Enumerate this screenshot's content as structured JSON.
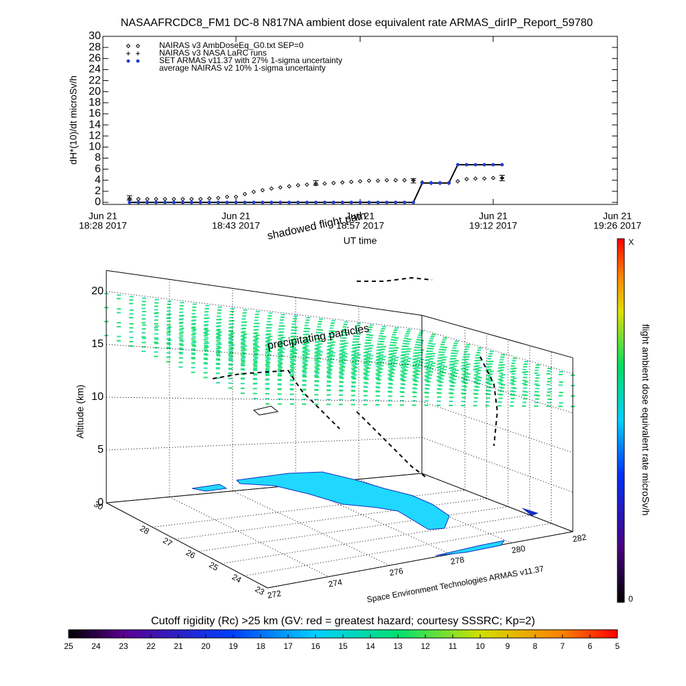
{
  "chart_data": [
    {
      "type": "line",
      "title": "NASAAFRCDC8_FM1 DC-8   N817NA ambient dose equivalent rate ARMAS_dirIP_Report_59780",
      "y_label": "dH*(10)/dt microSv/h",
      "x_label": "UT time",
      "xlim": [
        "18:28",
        "19:26"
      ],
      "xticks": [
        {
          "value": "18:28",
          "label": [
            "Jun 21",
            "18:28 2017"
          ]
        },
        {
          "value": "18:43",
          "label": [
            "Jun 21",
            "18:43 2017"
          ]
        },
        {
          "value": "18:57",
          "label": [
            "Jun 21",
            "18:57 2017"
          ]
        },
        {
          "value": "19:12",
          "label": [
            "Jun 21",
            "19:12 2017"
          ]
        },
        {
          "value": "19:26",
          "label": [
            "Jun 21",
            "19:26 2017"
          ]
        }
      ],
      "ylim": [
        0,
        30
      ],
      "yticks": [
        0,
        2,
        4,
        6,
        8,
        10,
        12,
        14,
        16,
        18,
        20,
        22,
        24,
        26,
        28,
        30
      ],
      "x": [
        "18:31",
        "18:32",
        "18:33",
        "18:34",
        "18:35",
        "18:36",
        "18:37",
        "18:38",
        "18:39",
        "18:40",
        "18:41",
        "18:42",
        "18:43",
        "18:44",
        "18:45",
        "18:46",
        "18:47",
        "18:48",
        "18:49",
        "18:50",
        "18:51",
        "18:52",
        "18:53",
        "18:54",
        "18:55",
        "18:56",
        "18:57",
        "18:58",
        "18:59",
        "19:00",
        "19:01",
        "19:02",
        "19:03",
        "19:04",
        "19:05",
        "19:06",
        "19:07",
        "19:08",
        "19:09",
        "19:10",
        "19:11",
        "19:12",
        "19:13"
      ],
      "series": [
        {
          "name": "NAIRAS v3 AmbDoseEq_G0.txt SEP=0",
          "marker": "diamond",
          "color": "#000000",
          "values": [
            0.6,
            0.6,
            0.6,
            0.6,
            0.6,
            0.6,
            0.6,
            0.6,
            0.6,
            0.7,
            0.8,
            1.0,
            1.0,
            1.5,
            1.9,
            2.2,
            2.5,
            2.7,
            2.9,
            3.1,
            3.2,
            3.3,
            3.4,
            3.5,
            3.6,
            3.7,
            3.8,
            3.9,
            3.9,
            4.0,
            4.0,
            4.0,
            4.0,
            3.6,
            3.5,
            3.5,
            3.5,
            3.8,
            4.2,
            4.3,
            4.3,
            4.4,
            4.4
          ]
        },
        {
          "name": "NAIRAS v3 NASA LaRC runs",
          "marker": "plus",
          "color": "#000000",
          "x": [
            "18:31",
            "18:52",
            "19:03",
            "19:13"
          ],
          "values": [
            0.8,
            3.5,
            3.9,
            4.4
          ]
        },
        {
          "name": "SET ARMAS v11.37 with 27% 1-sigma uncertainty",
          "marker": "dot",
          "color": "#1f3fd0",
          "line_color": "#000000",
          "values": [
            0,
            0,
            0,
            0,
            0,
            0,
            0,
            0,
            0,
            0,
            0,
            0,
            0,
            0,
            0,
            0,
            0,
            0,
            0,
            0,
            0,
            0,
            0,
            0,
            0,
            0,
            0,
            0,
            0,
            0,
            0,
            0,
            0,
            3.5,
            3.5,
            3.5,
            3.5,
            6.8,
            6.8,
            6.8,
            6.8,
            6.8,
            6.8
          ]
        },
        {
          "name": "average NAIRAS v2 10% 1-sigma uncertainty",
          "marker": "errorbar",
          "color": "#000000",
          "x": [
            "18:31",
            "18:52",
            "19:03",
            "19:13"
          ],
          "values": [
            0.8,
            3.5,
            3.9,
            4.4
          ],
          "errors": [
            0.4,
            0.4,
            0.4,
            0.5
          ]
        }
      ]
    },
    {
      "type": "surface3d",
      "z_label": "Altitude (km)",
      "zlim": [
        0,
        22
      ],
      "zticks": [
        0,
        5,
        10,
        15,
        20
      ],
      "latlim": [
        30,
        23
      ],
      "latticks": [
        30,
        28,
        27,
        26,
        25,
        24,
        23
      ],
      "lonlim": [
        272,
        282
      ],
      "lonticks": [
        272,
        274,
        276,
        278,
        280,
        282
      ],
      "annotations": [
        "shadowed flight path",
        "precipitating particles",
        "Space Environment Technologies ARMAS v11.37"
      ],
      "colorbar": {
        "label": "flight ambient dose equivalent rate microSv/h",
        "labels": [
          "X",
          "0"
        ]
      }
    },
    {
      "type": "colorbar",
      "title": "Cutoff rigidity (Rc) >25 km (GV: red = greatest hazard; courtesy SSSRC; Kp=2)",
      "xlim": [
        25,
        5
      ],
      "xticks": [
        25,
        24,
        23,
        22,
        21,
        20,
        19,
        18,
        17,
        16,
        15,
        14,
        13,
        12,
        11,
        10,
        9,
        8,
        7,
        6,
        5
      ]
    }
  ]
}
